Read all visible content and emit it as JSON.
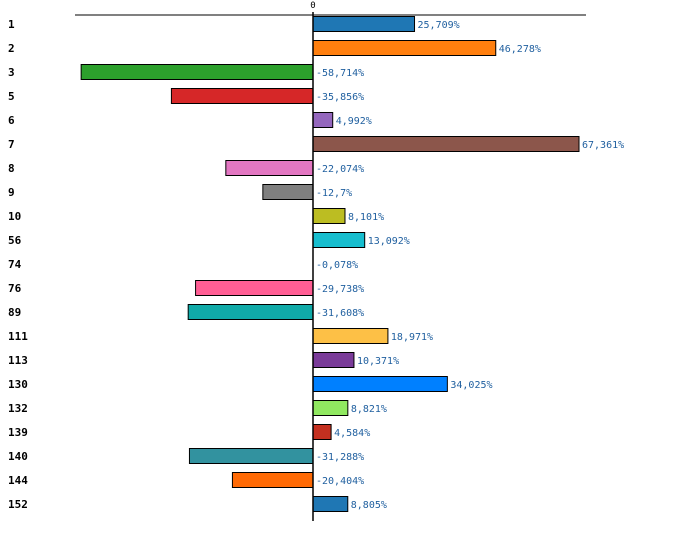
{
  "chart_data": {
    "type": "bar",
    "orientation": "horizontal",
    "zero_tick_label": "0",
    "xlim": [
      -67.5,
      67.5
    ],
    "value_suffix": "%",
    "grid": false,
    "categories": [
      "1",
      "2",
      "3",
      "5",
      "6",
      "7",
      "8",
      "9",
      "10",
      "56",
      "74",
      "76",
      "89",
      "111",
      "113",
      "130",
      "132",
      "139",
      "140",
      "144",
      "152"
    ],
    "values": [
      25.709,
      46.278,
      -58.714,
      -35.856,
      4.992,
      67.361,
      -22.074,
      -12.7,
      8.101,
      13.092,
      -0.078,
      -29.738,
      -31.608,
      18.971,
      10.371,
      34.025,
      8.821,
      4.584,
      -31.288,
      -20.404,
      8.805
    ],
    "value_labels": [
      "25,709%",
      "46,278%",
      "-58,714%",
      "-35,856%",
      "4,992%",
      "67,361%",
      "-22,074%",
      "-12,7%",
      "8,101%",
      "13,092%",
      "-0,078%",
      "-29,738%",
      "-31,608%",
      "18,971%",
      "10,371%",
      "34,025%",
      "8,821%",
      "4,584%",
      "-31,288%",
      "-20,404%",
      "8,805%"
    ],
    "colors": [
      "#1f77b4",
      "#ff7f0e",
      "#2ca02c",
      "#d62728",
      "#9467bd",
      "#8c564b",
      "#e377c2",
      "#7f7f7f",
      "#bcbd22",
      "#17becf",
      "#aec7e8",
      "#ff5e94",
      "#10aaa8",
      "#fdc046",
      "#7a3b99",
      "#0080ff",
      "#90e860",
      "#c43020",
      "#32929f",
      "#ff6a05",
      "#1f77b4"
    ]
  }
}
